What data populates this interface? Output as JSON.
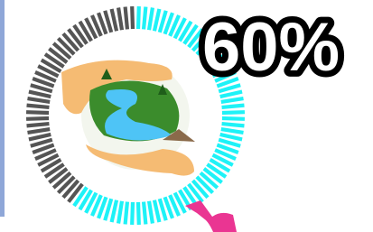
{
  "chart_data": {
    "type": "gauge",
    "values": [
      60
    ],
    "value_labels": [
      "60%"
    ],
    "ylim": [
      0,
      100
    ],
    "color": "#1ef2f7",
    "track_color": "#555555"
  }
}
